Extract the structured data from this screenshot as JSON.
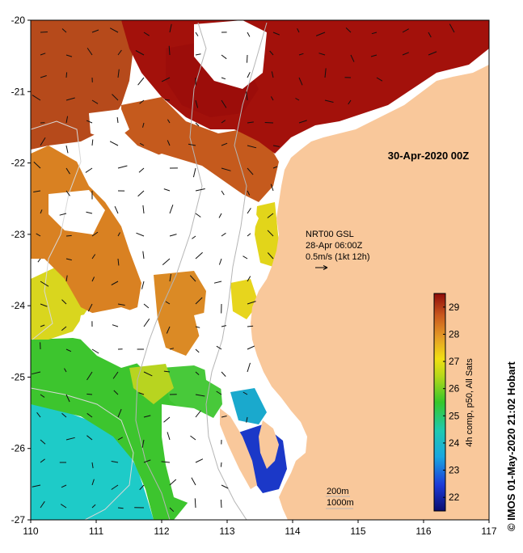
{
  "map": {
    "title": "30-Apr-2020 00Z",
    "x_axis": {
      "min": 110,
      "max": 117,
      "ticks": [
        "110",
        "111",
        "112",
        "113",
        "114",
        "115",
        "116",
        "117"
      ]
    },
    "y_axis": {
      "min": -27,
      "max": -20,
      "ticks": [
        "-20",
        "-21",
        "-22",
        "-23",
        "-24",
        "-25",
        "-26",
        "-27"
      ]
    },
    "current_annotation": {
      "line1": "NRT00 GSL",
      "line2": "28-Apr 06:00Z",
      "line3": "0.5m/s (1kt 12h)"
    },
    "isobath_labels": {
      "shallow": "200m",
      "deep": "1000m"
    },
    "colorbar": {
      "label": "4h comp, p50, All Sats",
      "min": 21.5,
      "max": 29.5,
      "ticks": [
        "22",
        "23",
        "24",
        "25",
        "26",
        "27",
        "28",
        "29"
      ]
    },
    "credit": "© IMOS 01-May-2020 21:02 Hobart",
    "colors": {
      "land": "#f9c89b",
      "no_data": "#ffffff",
      "contour": "#b5b5b5",
      "warm": "#a50f0b",
      "cool": "#19c9cf"
    }
  }
}
